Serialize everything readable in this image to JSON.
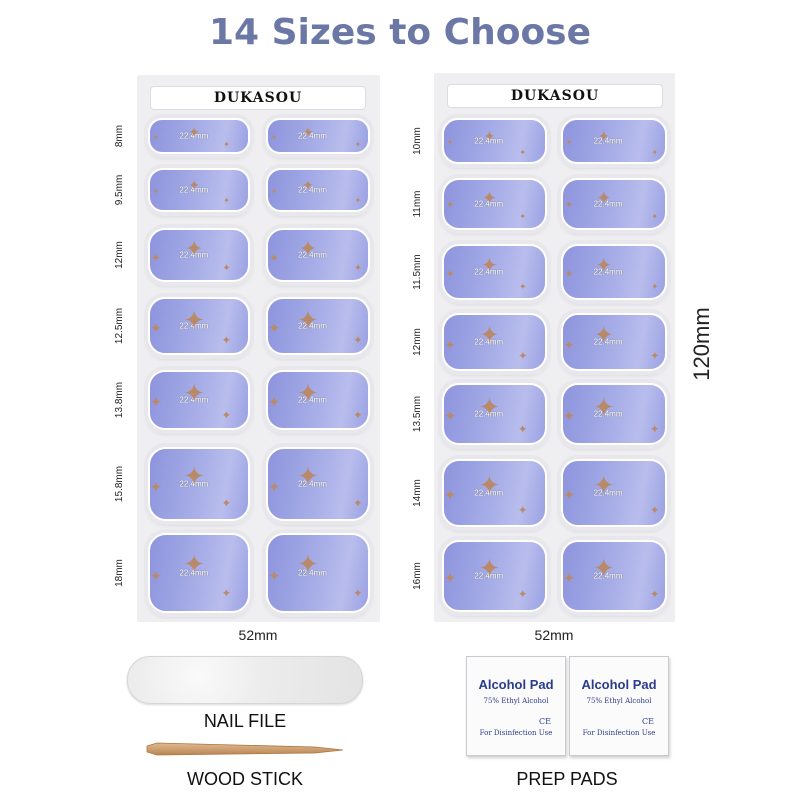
{
  "title": "14 Sizes to Choose",
  "brand": "DUKASOU",
  "nail_label": "22.4mm",
  "left_sheet": {
    "sizes": [
      "8mm",
      "9.5mm",
      "12mm",
      "12.5mm",
      "13.8mm",
      "15.8mm",
      "18mm"
    ],
    "width_label": "52mm"
  },
  "right_sheet": {
    "sizes": [
      "10mm",
      "11mm",
      "11.5mm",
      "12mm",
      "13.5mm",
      "14mm",
      "16mm"
    ],
    "width_label": "52mm",
    "height_label": "120mm"
  },
  "accessories": {
    "nail_file": "NAIL FILE",
    "wood_stick": "WOOD STICK",
    "prep_pads": "PREP PADS"
  },
  "pad": {
    "title": "Alcohol Pad",
    "subtitle": "75% Ethyl Alcohol",
    "ce": "CE",
    "note": "For Disinfection Use"
  },
  "colors": {
    "title": "#6b78a6",
    "nail": "#a0a7e4",
    "star": "#b98a6a",
    "pad_text": "#2b3c8c"
  }
}
